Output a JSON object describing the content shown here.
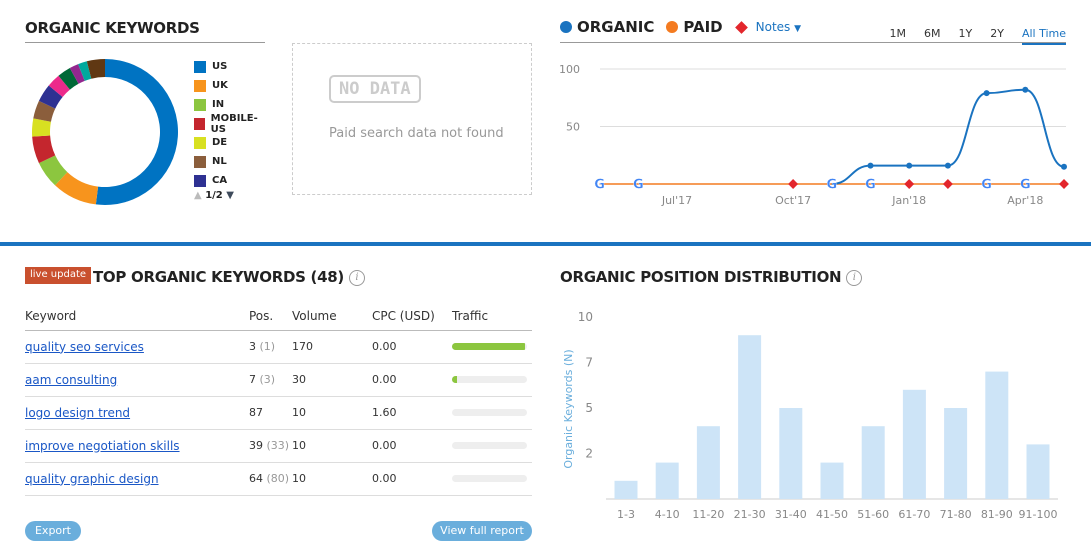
{
  "organic_keywords": {
    "title": "ORGANIC KEYWORDS",
    "legend": [
      {
        "label": "US",
        "color": "#0073c2"
      },
      {
        "label": "UK",
        "color": "#f7941d"
      },
      {
        "label": "IN",
        "color": "#8cc63f"
      },
      {
        "label": "MOBILE-US",
        "color": "#c4262e"
      },
      {
        "label": "DE",
        "color": "#d8e021"
      },
      {
        "label": "NL",
        "color": "#8b5e3c"
      },
      {
        "label": "CA",
        "color": "#2e3192"
      }
    ],
    "pager": "1/2",
    "donut": [
      {
        "label": "US",
        "value": 52,
        "color": "#0073c2"
      },
      {
        "label": "UK",
        "value": 10,
        "color": "#f7941d"
      },
      {
        "label": "IN",
        "value": 6,
        "color": "#8cc63f"
      },
      {
        "label": "MOBILE-US",
        "value": 6,
        "color": "#c4262e"
      },
      {
        "label": "DE",
        "value": 4,
        "color": "#d8e021"
      },
      {
        "label": "NL",
        "value": 4,
        "color": "#8b5e3c"
      },
      {
        "label": "CA",
        "value": 4,
        "color": "#2e3192"
      },
      {
        "value": 3,
        "color": "#ec2a8b"
      },
      {
        "value": 3,
        "color": "#006837"
      },
      {
        "value": 2,
        "color": "#93278f"
      },
      {
        "value": 2,
        "color": "#00a99d"
      },
      {
        "value": 4,
        "color": "#603813"
      }
    ]
  },
  "paid": {
    "badge": "NO DATA",
    "message": "Paid search data not found"
  },
  "trend": {
    "legend_organic": "ORGANIC",
    "legend_paid": "PAID",
    "notes": "Notes",
    "organic_color": "#1a73c0",
    "paid_color": "#f47b20",
    "ranges": [
      "1M",
      "6M",
      "1Y",
      "2Y",
      "All Time"
    ],
    "active_range": "All Time"
  },
  "top_keywords": {
    "badge": "live update",
    "title": "TOP ORGANIC KEYWORDS (48)",
    "columns": [
      "Keyword",
      "Pos.",
      "Volume",
      "CPC (USD)",
      "Traffic"
    ],
    "rows": [
      {
        "keyword": "quality seo services",
        "pos": "3",
        "prev": "(1)",
        "volume": "170",
        "cpc": "0.00",
        "traffic": 97
      },
      {
        "keyword": "aam consulting",
        "pos": "7",
        "prev": "(3)",
        "volume": "30",
        "cpc": "0.00",
        "traffic": 6
      },
      {
        "keyword": "logo design trend",
        "pos": "87",
        "prev": "",
        "volume": "10",
        "cpc": "1.60",
        "traffic": 0
      },
      {
        "keyword": "improve negotiation skills",
        "pos": "39",
        "prev": "(33)",
        "volume": "10",
        "cpc": "0.00",
        "traffic": 0
      },
      {
        "keyword": "quality graphic design",
        "pos": "64",
        "prev": "(80)",
        "volume": "10",
        "cpc": "0.00",
        "traffic": 0
      }
    ],
    "export": "Export",
    "view_full": "View full report"
  },
  "distribution": {
    "title": "ORGANIC POSITION DISTRIBUTION"
  },
  "chart_data": [
    {
      "type": "line",
      "x_ticks": [
        "Jul'17",
        "Oct'17",
        "Jan'18",
        "Apr'18"
      ],
      "ylim": [
        0,
        100
      ],
      "y_ticks": [
        50,
        100
      ],
      "grid": true,
      "series": [
        {
          "name": "ORGANIC",
          "x": [
            "Nov'17",
            "Dec'17",
            "Jan'18",
            "Feb'18",
            "Mar'18",
            "Apr'18",
            "May'18"
          ],
          "values": [
            0,
            16,
            16,
            16,
            79,
            82,
            15
          ]
        },
        {
          "name": "PAID",
          "x": [
            "May'17",
            "May'18"
          ],
          "values": [
            0,
            0
          ]
        }
      ],
      "google_updates": [
        "May'17",
        "Jun'17",
        "Nov'17",
        "Dec'17",
        "Mar'18",
        "Apr'18"
      ],
      "notes": [
        "Oct'17",
        "Jan'18",
        "Feb'18",
        "May'18"
      ]
    },
    {
      "type": "bar",
      "categories": [
        "1-3",
        "4-10",
        "11-20",
        "21-30",
        "31-40",
        "41-50",
        "51-60",
        "61-70",
        "71-80",
        "81-90",
        "91-100"
      ],
      "values": [
        1,
        2,
        4,
        9,
        5,
        2,
        4,
        6,
        5,
        7,
        3
      ],
      "ylabel": "Organic Keywords (N)",
      "y_ticks": [
        "2",
        "5",
        "7",
        "10"
      ],
      "ylim": [
        0,
        10
      ],
      "color": "#cde4f7"
    }
  ]
}
